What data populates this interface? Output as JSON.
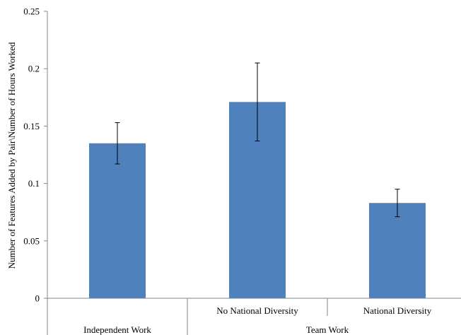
{
  "chart_data": {
    "type": "bar",
    "title": "",
    "xlabel": "",
    "ylabel": "Number of Features Added by Pair\\Number of Hours Worked",
    "ylim": [
      0,
      0.25
    ],
    "yticks": [
      "0",
      "0.05",
      "0.1",
      "0.15",
      "0.2",
      "0.25"
    ],
    "ytick_values": [
      0,
      0.05,
      0.1,
      0.15,
      0.2,
      0.25
    ],
    "grid": false,
    "legend": "none",
    "bar_color": "#4f81bd",
    "categories": [
      "Independent Work",
      "No National Diversity",
      "National Diversity"
    ],
    "values": [
      0.135,
      0.171,
      0.083
    ],
    "error_low": [
      0.117,
      0.137,
      0.071
    ],
    "error_high": [
      0.153,
      0.205,
      0.095
    ],
    "category_labels_shown": [
      "",
      "No National Diversity",
      "National Diversity"
    ],
    "groups": [
      {
        "label": "Independent Work",
        "categories": [
          0
        ]
      },
      {
        "label": "Team Work",
        "categories": [
          1,
          2
        ]
      }
    ]
  }
}
